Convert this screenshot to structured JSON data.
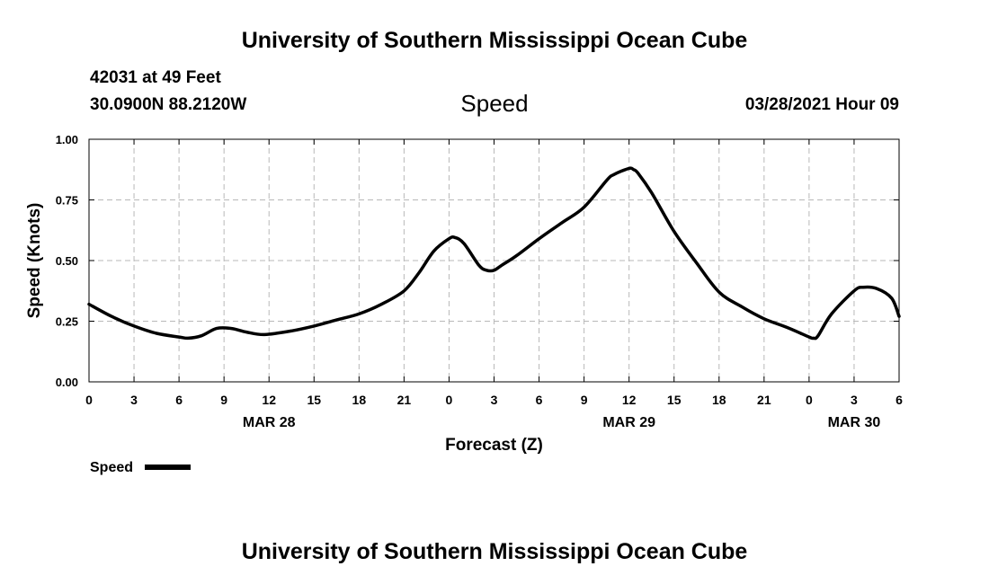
{
  "header": {
    "title_top": "University of Southern Mississippi Ocean Cube",
    "title_bottom": "University of Southern Mississippi Ocean Cube",
    "station": "42031 at 49 Feet",
    "coords": "30.0900N  88.2120W",
    "datetime": "03/28/2021 Hour 09"
  },
  "colors": {
    "line": "#000000",
    "grid": "#b8b8b8",
    "background": "#ffffff"
  },
  "chart_data": {
    "type": "line",
    "title": "Speed",
    "xlabel": "Forecast (Z)",
    "ylabel": "Speed (Knots)",
    "xlim": [
      0,
      54
    ],
    "ylim": [
      0,
      1
    ],
    "yticks": [
      0,
      0.25,
      0.5,
      0.75,
      1.0
    ],
    "ytick_labels": [
      "0.00",
      "0.25",
      "0.50",
      "0.75",
      "1.00"
    ],
    "xtick_labels": [
      "0",
      "3",
      "6",
      "9",
      "12",
      "15",
      "18",
      "21",
      "0",
      "3",
      "6",
      "9",
      "12",
      "15",
      "18",
      "21",
      "0",
      "3",
      "6"
    ],
    "day_labels": [
      {
        "label": "MAR 28",
        "at_hour": 12
      },
      {
        "label": "MAR 29",
        "at_hour": 36
      },
      {
        "label": "MAR 30",
        "at_hour": 51
      }
    ],
    "grid": true,
    "legend": {
      "position": "bottom-left",
      "entries": [
        "Speed"
      ]
    },
    "series": [
      {
        "name": "Speed",
        "x": [
          0,
          1.5,
          3,
          4.5,
          6,
          6.6,
          7.5,
          8.5,
          9.5,
          10.5,
          11.7,
          13.5,
          15,
          16.5,
          18,
          19.5,
          21,
          22,
          23,
          24,
          24.4,
          25,
          26,
          26.5,
          27,
          27.5,
          28.5,
          30,
          31.5,
          33,
          34.5,
          35,
          36,
          36.3,
          36.6,
          37.5,
          39,
          40.5,
          42,
          43.5,
          45,
          46.5,
          48,
          48.3,
          48.6,
          49.5,
          51,
          51.6,
          52.5,
          53.5,
          54
        ],
        "y": [
          0.32,
          0.27,
          0.23,
          0.2,
          0.185,
          0.18,
          0.19,
          0.22,
          0.22,
          0.205,
          0.195,
          0.21,
          0.23,
          0.255,
          0.28,
          0.32,
          0.375,
          0.45,
          0.54,
          0.59,
          0.595,
          0.57,
          0.48,
          0.46,
          0.46,
          0.48,
          0.52,
          0.59,
          0.655,
          0.72,
          0.83,
          0.855,
          0.88,
          0.875,
          0.86,
          0.78,
          0.62,
          0.49,
          0.37,
          0.31,
          0.26,
          0.225,
          0.185,
          0.18,
          0.19,
          0.28,
          0.375,
          0.39,
          0.385,
          0.345,
          0.27
        ]
      }
    ]
  }
}
